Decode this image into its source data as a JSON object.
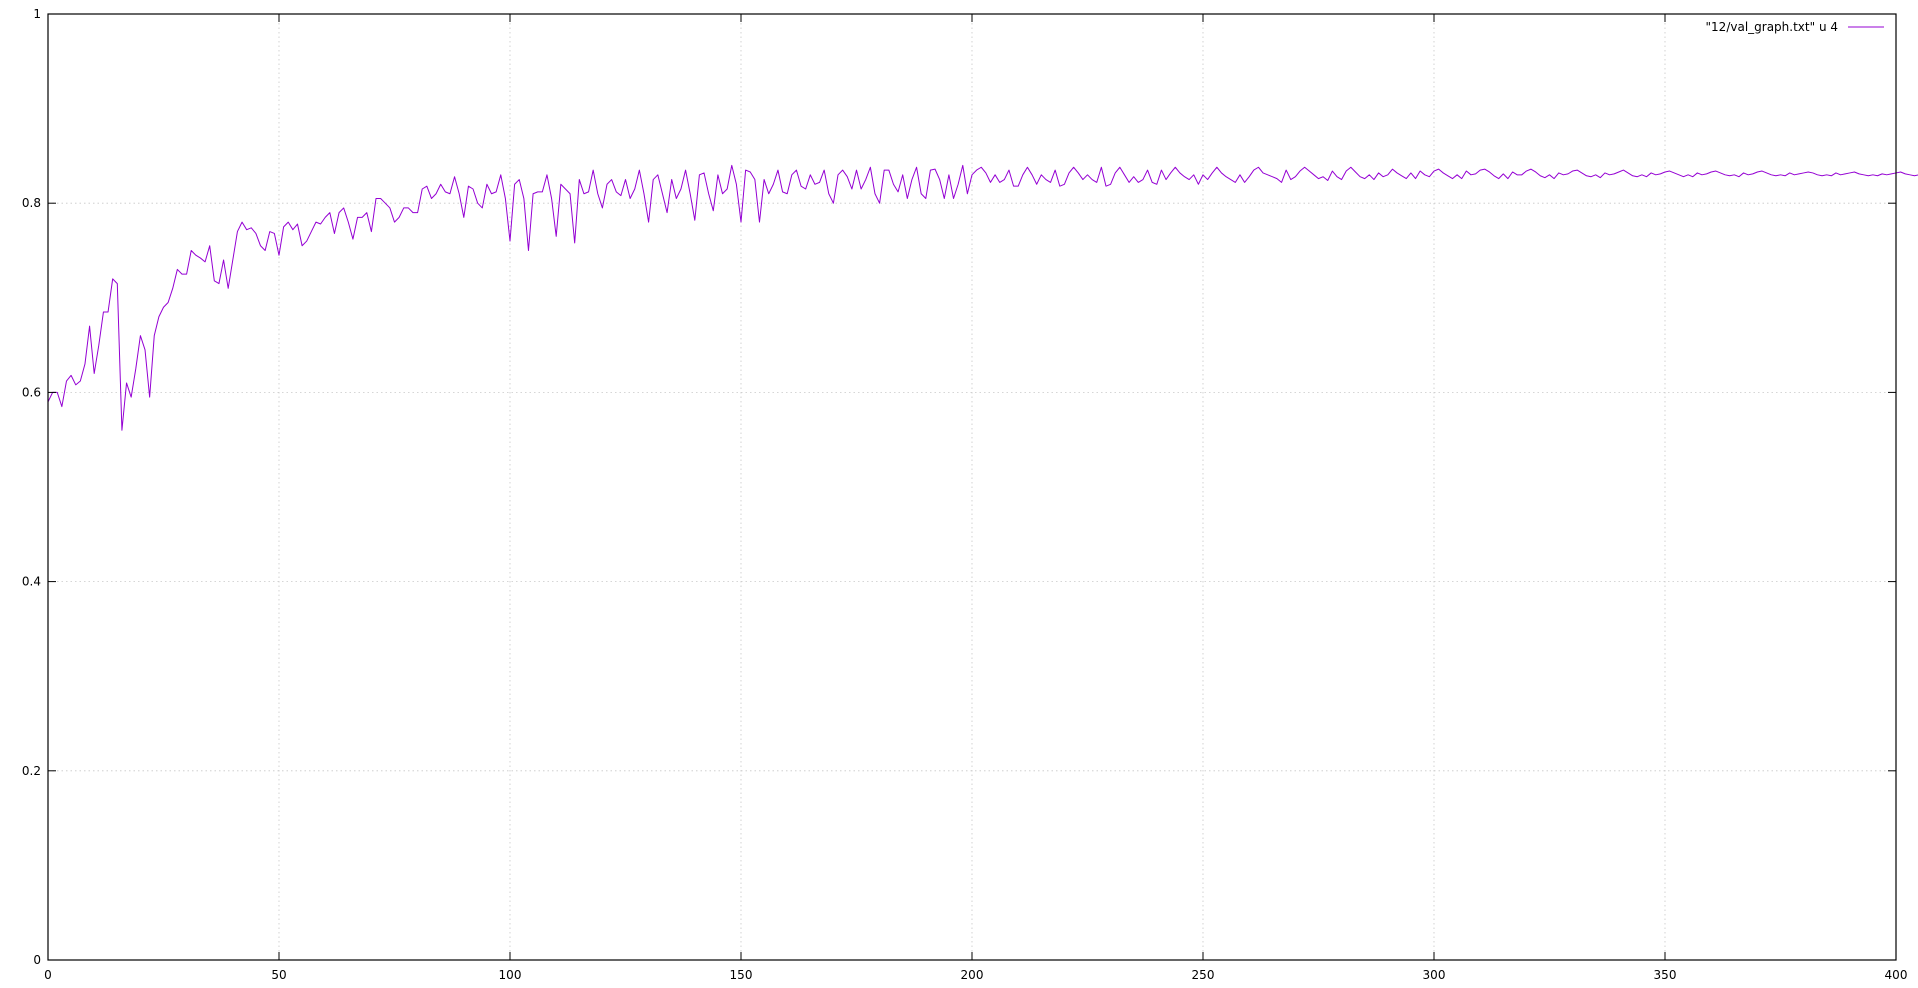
{
  "chart_data": {
    "type": "line",
    "title": "",
    "xlabel": "",
    "ylabel": "",
    "xlim": [
      0,
      400
    ],
    "ylim": [
      0,
      1
    ],
    "x_ticks": [
      0,
      50,
      100,
      150,
      200,
      250,
      300,
      350,
      400
    ],
    "y_ticks": [
      0,
      0.2,
      0.4,
      0.6,
      0.8,
      1
    ],
    "x_tick_labels": [
      "0",
      "50",
      "100",
      "150",
      "200",
      "250",
      "300",
      "350",
      "400"
    ],
    "y_tick_labels": [
      "0",
      "0.2",
      "0.4",
      "0.6",
      "0.8",
      "1"
    ],
    "grid": true,
    "legend_position": "top-right",
    "series": [
      {
        "name": "\"12/val_graph.txt\" u 4",
        "color": "#9400d3",
        "x_start": 0,
        "x_step": 1,
        "values": [
          0.59,
          0.6,
          0.6,
          0.585,
          0.612,
          0.618,
          0.608,
          0.612,
          0.63,
          0.67,
          0.62,
          0.65,
          0.685,
          0.685,
          0.72,
          0.715,
          0.56,
          0.61,
          0.595,
          0.625,
          0.66,
          0.645,
          0.595,
          0.66,
          0.68,
          0.69,
          0.695,
          0.71,
          0.73,
          0.725,
          0.725,
          0.75,
          0.745,
          0.742,
          0.738,
          0.755,
          0.718,
          0.715,
          0.74,
          0.71,
          0.74,
          0.77,
          0.78,
          0.772,
          0.774,
          0.768,
          0.755,
          0.75,
          0.77,
          0.768,
          0.745,
          0.775,
          0.78,
          0.772,
          0.778,
          0.755,
          0.76,
          0.77,
          0.78,
          0.778,
          0.785,
          0.79,
          0.768,
          0.79,
          0.795,
          0.78,
          0.762,
          0.785,
          0.785,
          0.79,
          0.77,
          0.805,
          0.805,
          0.8,
          0.795,
          0.78,
          0.785,
          0.795,
          0.795,
          0.79,
          0.79,
          0.815,
          0.818,
          0.805,
          0.81,
          0.82,
          0.812,
          0.81,
          0.828,
          0.81,
          0.785,
          0.818,
          0.815,
          0.8,
          0.795,
          0.82,
          0.81,
          0.812,
          0.83,
          0.805,
          0.76,
          0.82,
          0.825,
          0.805,
          0.75,
          0.81,
          0.812,
          0.812,
          0.83,
          0.805,
          0.765,
          0.82,
          0.815,
          0.81,
          0.758,
          0.825,
          0.81,
          0.812,
          0.835,
          0.81,
          0.795,
          0.82,
          0.825,
          0.812,
          0.808,
          0.825,
          0.805,
          0.815,
          0.835,
          0.81,
          0.78,
          0.825,
          0.83,
          0.81,
          0.79,
          0.825,
          0.805,
          0.815,
          0.835,
          0.81,
          0.782,
          0.83,
          0.832,
          0.81,
          0.792,
          0.83,
          0.81,
          0.815,
          0.84,
          0.82,
          0.78,
          0.835,
          0.833,
          0.825,
          0.78,
          0.825,
          0.81,
          0.82,
          0.835,
          0.812,
          0.81,
          0.83,
          0.835,
          0.818,
          0.815,
          0.83,
          0.82,
          0.822,
          0.835,
          0.81,
          0.8,
          0.83,
          0.835,
          0.828,
          0.815,
          0.835,
          0.815,
          0.825,
          0.838,
          0.81,
          0.8,
          0.835,
          0.835,
          0.82,
          0.812,
          0.83,
          0.805,
          0.825,
          0.838,
          0.81,
          0.805,
          0.835,
          0.836,
          0.825,
          0.805,
          0.83,
          0.805,
          0.82,
          0.84,
          0.81,
          0.83,
          0.835,
          0.838,
          0.832,
          0.822,
          0.83,
          0.822,
          0.825,
          0.835,
          0.818,
          0.818,
          0.83,
          0.838,
          0.83,
          0.82,
          0.83,
          0.825,
          0.822,
          0.835,
          0.818,
          0.82,
          0.832,
          0.838,
          0.832,
          0.825,
          0.83,
          0.825,
          0.822,
          0.838,
          0.818,
          0.82,
          0.832,
          0.838,
          0.83,
          0.822,
          0.828,
          0.822,
          0.825,
          0.835,
          0.822,
          0.82,
          0.835,
          0.825,
          0.832,
          0.838,
          0.832,
          0.828,
          0.825,
          0.83,
          0.82,
          0.83,
          0.825,
          0.832,
          0.838,
          0.832,
          0.828,
          0.825,
          0.822,
          0.83,
          0.822,
          0.828,
          0.835,
          0.838,
          0.832,
          0.83,
          0.828,
          0.826,
          0.822,
          0.835,
          0.825,
          0.828,
          0.834,
          0.838,
          0.834,
          0.83,
          0.826,
          0.828,
          0.824,
          0.834,
          0.828,
          0.825,
          0.834,
          0.838,
          0.833,
          0.828,
          0.826,
          0.83,
          0.825,
          0.832,
          0.828,
          0.83,
          0.836,
          0.832,
          0.829,
          0.826,
          0.832,
          0.826,
          0.834,
          0.83,
          0.828,
          0.834,
          0.836,
          0.832,
          0.829,
          0.826,
          0.83,
          0.826,
          0.834,
          0.83,
          0.831,
          0.835,
          0.836,
          0.833,
          0.829,
          0.826,
          0.831,
          0.826,
          0.833,
          0.83,
          0.83,
          0.834,
          0.836,
          0.833,
          0.829,
          0.827,
          0.83,
          0.826,
          0.832,
          0.83,
          0.831,
          0.834,
          0.835,
          0.832,
          0.829,
          0.828,
          0.83,
          0.827,
          0.832,
          0.83,
          0.831,
          0.833,
          0.835,
          0.832,
          0.829,
          0.828,
          0.83,
          0.828,
          0.832,
          0.83,
          0.831,
          0.833,
          0.834,
          0.832,
          0.83,
          0.828,
          0.83,
          0.828,
          0.832,
          0.83,
          0.831,
          0.833,
          0.834,
          0.832,
          0.83,
          0.829,
          0.83,
          0.828,
          0.832,
          0.83,
          0.831,
          0.833,
          0.834,
          0.832,
          0.83,
          0.829,
          0.83,
          0.829,
          0.832,
          0.83,
          0.831,
          0.832,
          0.833,
          0.832,
          0.83,
          0.829,
          0.83,
          0.829,
          0.832,
          0.83,
          0.831,
          0.832,
          0.833,
          0.831,
          0.83,
          0.829,
          0.83,
          0.829,
          0.831,
          0.83,
          0.831,
          0.832,
          0.833,
          0.831,
          0.83,
          0.829,
          0.83,
          0.83
        ]
      }
    ]
  }
}
